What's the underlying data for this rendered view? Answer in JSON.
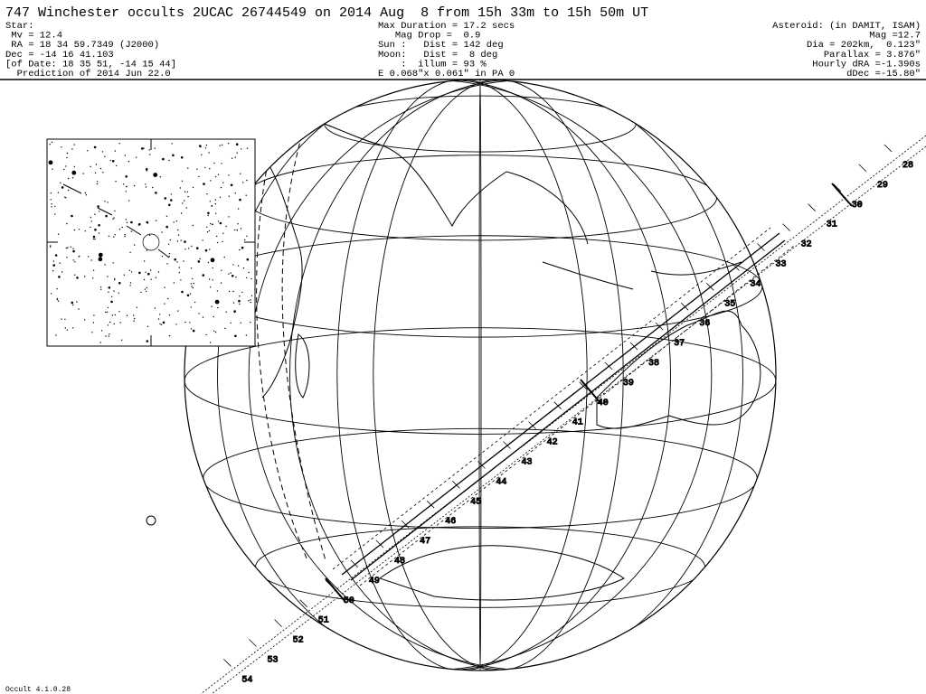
{
  "header": {
    "title": "747 Winchester occults 2UCAC 26744549 on 2014 Aug  8 from 15h 33m to 15h 50m UT",
    "left": [
      "Star:",
      " Mv = 12.4",
      " RA = 18 34 59.7349 (J2000)",
      "Dec = -14 16 41.103",
      "[of Date: 18 35 51, -14 15 44]",
      "  Prediction of 2014 Jun 22.0"
    ],
    "middle": [
      "Max Duration = 17.2 secs",
      "   Mag Drop =  0.9",
      "Sun :   Dist = 142 deg",
      "Moon:   Dist =  8 deg",
      "    :  illum = 93 %",
      "E 0.068\"x 0.061\" in PA 0"
    ],
    "right": [
      "Asteroid: (in DAMIT, ISAM)",
      "Mag =12.7",
      "Dia = 202km,  0.123\"",
      "Parallax = 3.876\"",
      "Hourly dRA =-1.390s",
      "dDec =-15.80\""
    ]
  },
  "track_labels": [
    "28",
    "29",
    "30",
    "31",
    "32",
    "33",
    "34",
    "35",
    "36",
    "37",
    "38",
    "39",
    "40",
    "41",
    "42",
    "43",
    "44",
    "45",
    "46",
    "47",
    "48",
    "49",
    "50",
    "51",
    "52",
    "53",
    "54"
  ],
  "footer": "Occult 4.1.0.28"
}
